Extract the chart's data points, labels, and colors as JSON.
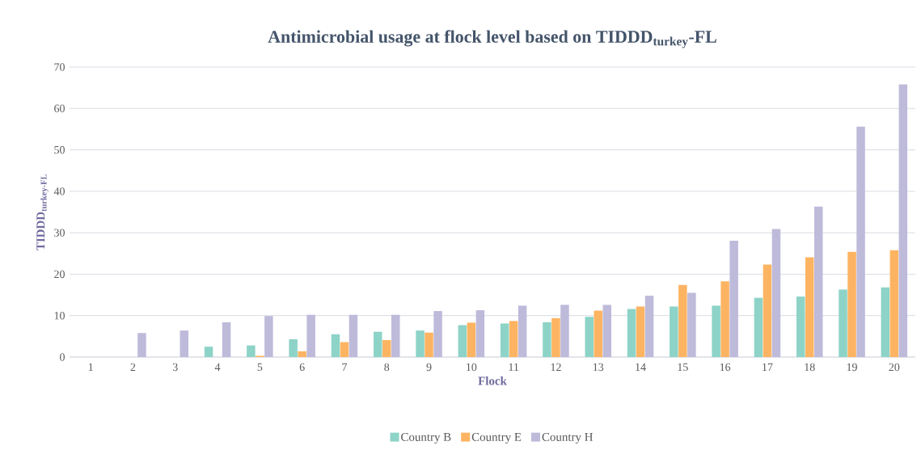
{
  "chart_data": {
    "type": "bar",
    "title": "Antimicrobial usage at flock level based on TIDDD$_{turkey}$-FL",
    "xlabel": "Flock",
    "ylabel": "TIDDD$_{turkey-FL}$",
    "categories": [
      "1",
      "2",
      "3",
      "4",
      "5",
      "6",
      "7",
      "8",
      "9",
      "10",
      "11",
      "12",
      "13",
      "14",
      "15",
      "16",
      "17",
      "18",
      "19",
      "20"
    ],
    "series": [
      {
        "name": "Country B",
        "color": "#8dd3c7",
        "values": [
          0,
          0,
          0,
          2.5,
          2.8,
          4.3,
          5.5,
          6.1,
          6.4,
          7.7,
          8.1,
          8.4,
          9.7,
          11.6,
          12.2,
          12.4,
          14.3,
          14.6,
          16.3,
          16.8
        ]
      },
      {
        "name": "Country E",
        "color": "#fdb462",
        "values": [
          0,
          0,
          0,
          0,
          0.3,
          1.4,
          3.6,
          4.1,
          5.9,
          8.3,
          8.7,
          9.4,
          11.2,
          12.2,
          17.4,
          18.3,
          22.3,
          24.1,
          25.4,
          25.8
        ]
      },
      {
        "name": "Country H",
        "color": "#bebada",
        "values": [
          0,
          5.8,
          6.4,
          8.4,
          9.9,
          10.2,
          10.2,
          10.2,
          11.1,
          11.3,
          12.4,
          12.6,
          12.6,
          14.8,
          15.5,
          28.1,
          30.9,
          36.3,
          55.6,
          65.8
        ]
      }
    ],
    "ylim": [
      0,
      70
    ],
    "yticks": [
      0,
      10,
      20,
      30,
      40,
      50,
      60,
      70
    ],
    "grid": "y",
    "legend": "bottom"
  }
}
